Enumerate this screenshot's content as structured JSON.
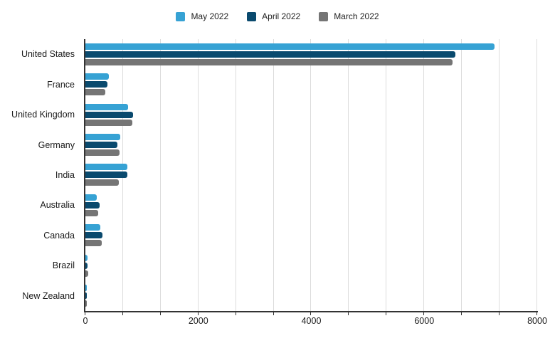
{
  "chart_data": {
    "type": "bar",
    "orientation": "horizontal",
    "title": "",
    "categories": [
      "United States",
      "France",
      "United Kingdom",
      "Germany",
      "India",
      "Australia",
      "Canada",
      "Brazil",
      "New Zealand"
    ],
    "series": [
      {
        "name": "May 2022",
        "color": "#36a2d4",
        "values": [
          7250,
          420,
          755,
          615,
          745,
          200,
          265,
          40,
          30
        ]
      },
      {
        "name": "April 2022",
        "color": "#0a4a6e",
        "values": [
          6550,
          390,
          850,
          565,
          740,
          250,
          305,
          35,
          20
        ]
      },
      {
        "name": "March 2022",
        "color": "#757575",
        "values": [
          6500,
          355,
          830,
          610,
          595,
          225,
          295,
          50,
          15
        ]
      }
    ],
    "xlim": [
      0,
      8000
    ],
    "x_tick_labels": [
      "0",
      "2000",
      "4000",
      "6000",
      "8000"
    ],
    "x_tick_values": [
      0,
      2000,
      4000,
      6000,
      8000
    ],
    "minor_gridlines_per_major": 2,
    "grid": true,
    "legend_position": "top"
  },
  "colors": {
    "background": "#ffffff",
    "gridline": "#dcdcdc",
    "axis": "#333333",
    "label_text": "#1a1a1a",
    "legend_text": "#212121"
  }
}
